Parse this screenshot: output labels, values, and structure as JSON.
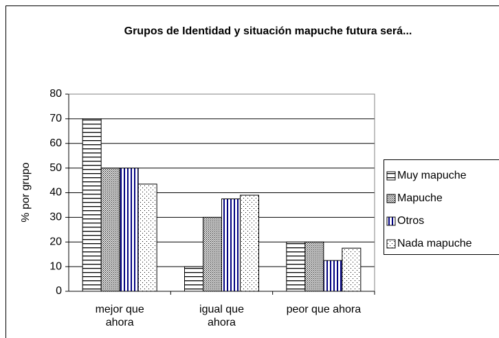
{
  "chart_data": {
    "type": "bar",
    "title": "Grupos de Identidad y situación mapuche futura será...",
    "y_label": "% por grupo",
    "categories": [
      "mejor que ahora",
      "igual que ahora",
      "peor que ahora"
    ],
    "series": [
      {
        "name": "Muy mapuche",
        "color": "#000000",
        "pattern": "horizontal",
        "values": [
          70,
          10,
          20
        ]
      },
      {
        "name": "Mapuche",
        "color": "#000000",
        "pattern": "dense-dots",
        "values": [
          50,
          30,
          20
        ]
      },
      {
        "name": "Otros",
        "color": "#000080",
        "pattern": "vertical",
        "values": [
          50,
          37.5,
          12.5
        ]
      },
      {
        "name": "Nada mapuche",
        "color": "#000000",
        "pattern": "sparse-dots",
        "values": [
          43.5,
          39,
          17.5
        ]
      }
    ],
    "ylim": [
      0,
      80
    ],
    "yticks": [
      0,
      10,
      20,
      30,
      40,
      50,
      60,
      70,
      80
    ],
    "grid": true,
    "legend": "right"
  }
}
